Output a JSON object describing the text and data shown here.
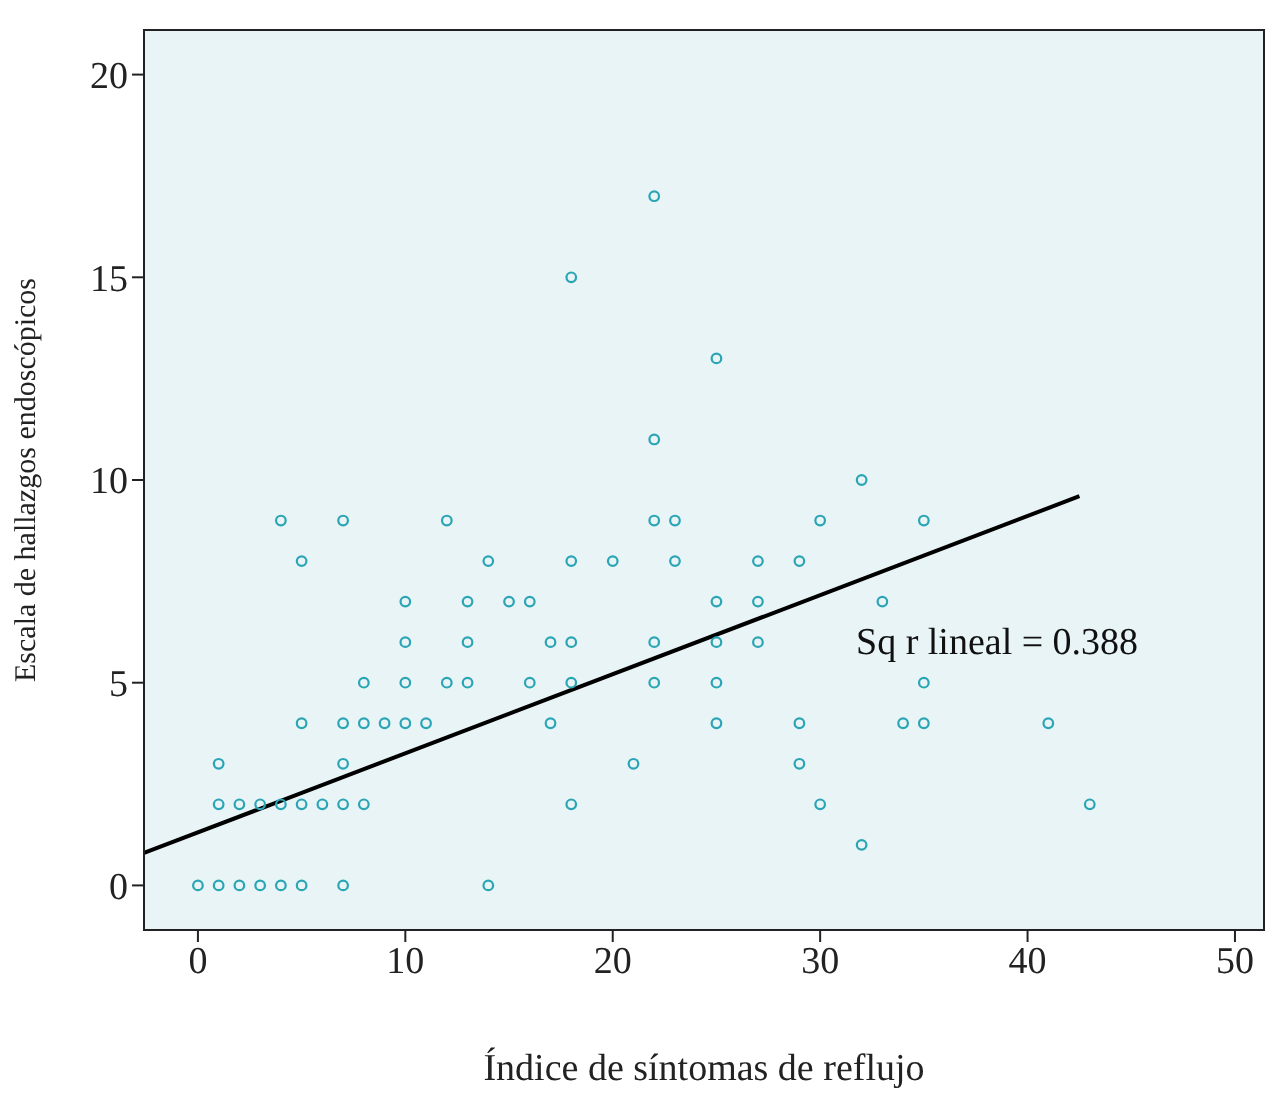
{
  "chart_data": {
    "type": "scatter",
    "xlabel": "Índice de síntomas de reflujo",
    "ylabel": "Escala de hallazgos endoscópicos",
    "xlim": [
      -2.6,
      51.4
    ],
    "ylim": [
      -1.1,
      21.1
    ],
    "xticks": [
      0,
      10,
      20,
      30,
      40,
      50
    ],
    "yticks": [
      0,
      5,
      10,
      15,
      20
    ],
    "annotations": [
      "Sq r lineal = 0.388"
    ],
    "series": [
      {
        "marker": "circle",
        "color": "#2aa5b5",
        "x": [
          0,
          1,
          2,
          3,
          4,
          5,
          7,
          14,
          1,
          2,
          3,
          4,
          5,
          6,
          7,
          8,
          18,
          30,
          43,
          1,
          7,
          21,
          29,
          5,
          7,
          8,
          9,
          10,
          11,
          17,
          25,
          29,
          34,
          35,
          41,
          8,
          10,
          12,
          13,
          16,
          18,
          22,
          25,
          35,
          10,
          13,
          17,
          18,
          22,
          25,
          27,
          10,
          13,
          15,
          16,
          25,
          27,
          33,
          5,
          14,
          18,
          20,
          23,
          27,
          29,
          4,
          7,
          12,
          22,
          23,
          30,
          35,
          32,
          22,
          25,
          18,
          22,
          32
        ],
        "values": [
          0,
          0,
          0,
          0,
          0,
          0,
          0,
          0,
          2,
          2,
          2,
          2,
          2,
          2,
          2,
          2,
          2,
          2,
          2,
          3,
          3,
          3,
          3,
          4,
          4,
          4,
          4,
          4,
          4,
          4,
          4,
          4,
          4,
          4,
          4,
          5,
          5,
          5,
          5,
          5,
          5,
          5,
          5,
          5,
          6,
          6,
          6,
          6,
          6,
          6,
          6,
          7,
          7,
          7,
          7,
          7,
          7,
          7,
          8,
          8,
          8,
          8,
          8,
          8,
          8,
          9,
          9,
          9,
          9,
          9,
          9,
          9,
          10,
          11,
          13,
          15,
          17,
          1
        ]
      },
      {
        "type": "line",
        "marker": "none",
        "color": "#000000",
        "x": [
          -2.6,
          42.5
        ],
        "values": [
          0.8,
          9.6
        ]
      }
    ]
  }
}
